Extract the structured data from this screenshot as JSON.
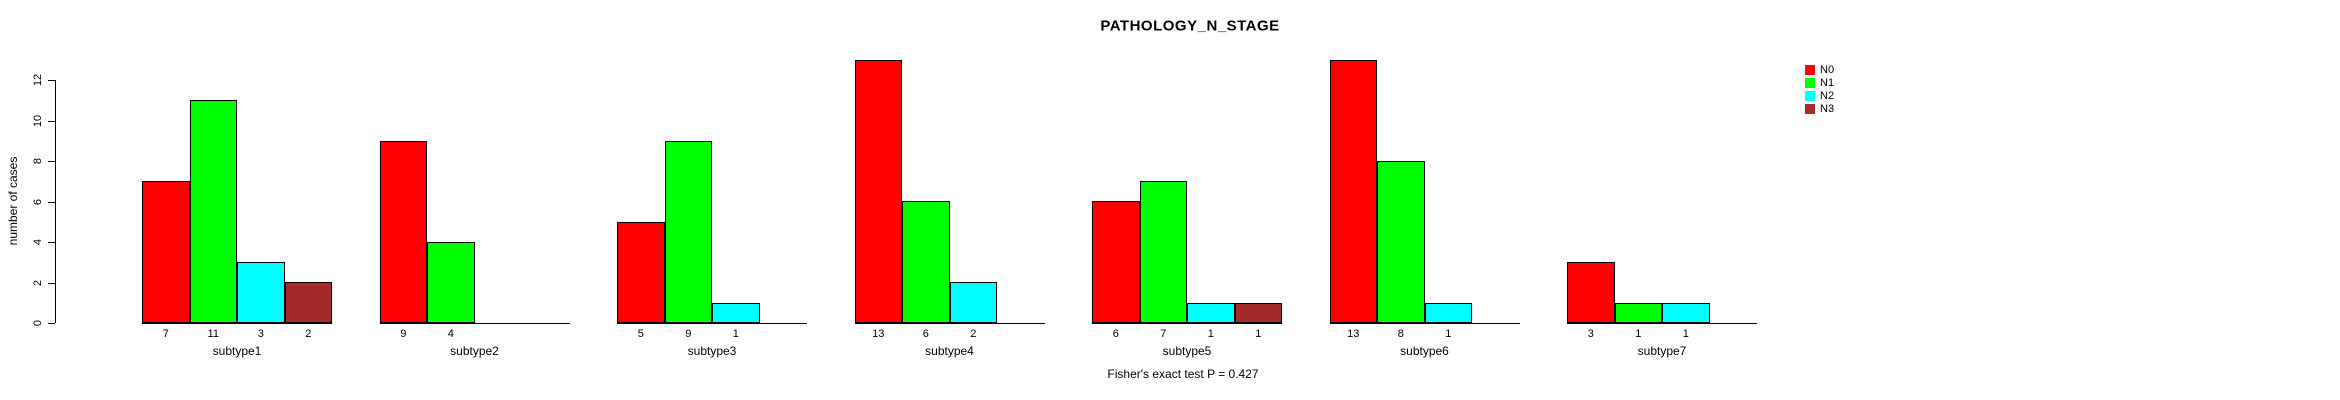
{
  "chart_data": {
    "type": "bar",
    "title": "PATHOLOGY_N_STAGE",
    "ylabel": "number of cases",
    "xlabel": "",
    "annotation": "Fisher's exact test P = 0.427",
    "categories": [
      "subtype1",
      "subtype2",
      "subtype3",
      "subtype4",
      "subtype5",
      "subtype6",
      "subtype7"
    ],
    "series": [
      {
        "name": "N0",
        "color": "#FF0000",
        "values": [
          7,
          9,
          5,
          13,
          6,
          13,
          3
        ]
      },
      {
        "name": "N1",
        "color": "#00FF00",
        "values": [
          11,
          4,
          9,
          6,
          7,
          8,
          1
        ]
      },
      {
        "name": "N2",
        "color": "#00FFFF",
        "values": [
          3,
          0,
          1,
          2,
          1,
          1,
          1
        ]
      },
      {
        "name": "N3",
        "color": "#A52A2A",
        "values": [
          2,
          0,
          0,
          0,
          1,
          0,
          0
        ]
      }
    ],
    "bar_value_labels": [
      [
        "7",
        "11",
        "3",
        "2"
      ],
      [
        "9",
        "4",
        "",
        ""
      ],
      [
        "5",
        "9",
        "1",
        ""
      ],
      [
        "13",
        "6",
        "2",
        ""
      ],
      [
        "6",
        "7",
        "1",
        "1"
      ],
      [
        "13",
        "8",
        "1",
        ""
      ],
      [
        "3",
        "1",
        "1",
        ""
      ]
    ],
    "ylim": [
      0,
      12
    ],
    "yticks": [
      "0",
      "2",
      "4",
      "6",
      "8",
      "10",
      "12"
    ],
    "grid": false,
    "legend_position": "right",
    "background_color": "#ffffff",
    "axis_color": "#000000"
  }
}
